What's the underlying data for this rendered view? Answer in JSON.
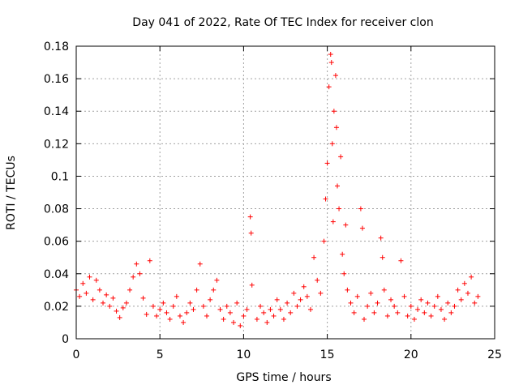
{
  "chart_data": {
    "type": "scatter",
    "title": "Day 041 of 2022, Rate Of TEC Index for receiver clon",
    "xlabel": "GPS time / hours",
    "ylabel": "ROTI / TECUs",
    "xlim": [
      0,
      25
    ],
    "ylim": [
      0,
      0.18
    ],
    "xticks": [
      "0",
      "5",
      "10",
      "15",
      "20",
      "25"
    ],
    "yticks": [
      "0",
      "0.02",
      "0.04",
      "0.06",
      "0.08",
      "0.1",
      "0.12",
      "0.14",
      "0.16",
      "0.18"
    ],
    "grid": true,
    "marker_color": "#ff0000",
    "series": [
      {
        "points": [
          [
            0.0,
            0.03
          ],
          [
            0.2,
            0.026
          ],
          [
            0.4,
            0.034
          ],
          [
            0.6,
            0.028
          ],
          [
            0.8,
            0.038
          ],
          [
            1.0,
            0.024
          ],
          [
            1.2,
            0.036
          ],
          [
            1.4,
            0.03
          ],
          [
            1.6,
            0.022
          ],
          [
            1.8,
            0.027
          ],
          [
            2.0,
            0.02
          ],
          [
            2.2,
            0.025
          ],
          [
            2.4,
            0.017
          ],
          [
            2.6,
            0.013
          ],
          [
            2.8,
            0.019
          ],
          [
            3.0,
            0.022
          ],
          [
            3.2,
            0.03
          ],
          [
            3.4,
            0.038
          ],
          [
            3.6,
            0.046
          ],
          [
            3.8,
            0.04
          ],
          [
            4.0,
            0.025
          ],
          [
            4.2,
            0.015
          ],
          [
            4.4,
            0.048
          ],
          [
            4.6,
            0.02
          ],
          [
            4.8,
            0.014
          ],
          [
            5.0,
            0.018
          ],
          [
            5.2,
            0.022
          ],
          [
            5.4,
            0.016
          ],
          [
            5.6,
            0.012
          ],
          [
            5.8,
            0.02
          ],
          [
            6.0,
            0.026
          ],
          [
            6.2,
            0.014
          ],
          [
            6.4,
            0.01
          ],
          [
            6.6,
            0.016
          ],
          [
            6.8,
            0.022
          ],
          [
            7.0,
            0.018
          ],
          [
            7.2,
            0.03
          ],
          [
            7.4,
            0.046
          ],
          [
            7.6,
            0.02
          ],
          [
            7.8,
            0.014
          ],
          [
            8.0,
            0.024
          ],
          [
            8.2,
            0.03
          ],
          [
            8.4,
            0.036
          ],
          [
            8.6,
            0.018
          ],
          [
            8.8,
            0.012
          ],
          [
            9.0,
            0.02
          ],
          [
            9.2,
            0.016
          ],
          [
            9.4,
            0.01
          ],
          [
            9.6,
            0.022
          ],
          [
            9.8,
            0.008
          ],
          [
            10.0,
            0.014
          ],
          [
            10.2,
            0.018
          ],
          [
            10.4,
            0.075
          ],
          [
            10.45,
            0.065
          ],
          [
            10.5,
            0.033
          ],
          [
            10.8,
            0.012
          ],
          [
            11.0,
            0.02
          ],
          [
            11.2,
            0.016
          ],
          [
            11.4,
            0.01
          ],
          [
            11.6,
            0.018
          ],
          [
            11.8,
            0.014
          ],
          [
            12.0,
            0.024
          ],
          [
            12.2,
            0.018
          ],
          [
            12.4,
            0.012
          ],
          [
            12.6,
            0.022
          ],
          [
            12.8,
            0.016
          ],
          [
            13.0,
            0.028
          ],
          [
            13.2,
            0.02
          ],
          [
            13.4,
            0.024
          ],
          [
            13.6,
            0.032
          ],
          [
            13.8,
            0.026
          ],
          [
            14.0,
            0.018
          ],
          [
            14.2,
            0.05
          ],
          [
            14.4,
            0.036
          ],
          [
            14.6,
            0.028
          ],
          [
            14.8,
            0.06
          ],
          [
            14.9,
            0.086
          ],
          [
            15.0,
            0.108
          ],
          [
            15.1,
            0.155
          ],
          [
            15.2,
            0.175
          ],
          [
            15.25,
            0.17
          ],
          [
            15.3,
            0.12
          ],
          [
            15.35,
            0.072
          ],
          [
            15.4,
            0.14
          ],
          [
            15.5,
            0.162
          ],
          [
            15.55,
            0.13
          ],
          [
            15.6,
            0.094
          ],
          [
            15.7,
            0.08
          ],
          [
            15.8,
            0.112
          ],
          [
            15.9,
            0.052
          ],
          [
            16.0,
            0.04
          ],
          [
            16.1,
            0.07
          ],
          [
            16.2,
            0.03
          ],
          [
            16.4,
            0.022
          ],
          [
            16.6,
            0.016
          ],
          [
            16.8,
            0.026
          ],
          [
            17.0,
            0.08
          ],
          [
            17.1,
            0.068
          ],
          [
            17.2,
            0.012
          ],
          [
            17.4,
            0.02
          ],
          [
            17.6,
            0.028
          ],
          [
            17.8,
            0.016
          ],
          [
            18.0,
            0.022
          ],
          [
            18.2,
            0.062
          ],
          [
            18.3,
            0.05
          ],
          [
            18.4,
            0.03
          ],
          [
            18.6,
            0.014
          ],
          [
            18.8,
            0.024
          ],
          [
            19.0,
            0.02
          ],
          [
            19.2,
            0.016
          ],
          [
            19.4,
            0.048
          ],
          [
            19.6,
            0.026
          ],
          [
            19.8,
            0.014
          ],
          [
            20.0,
            0.02
          ],
          [
            20.2,
            0.012
          ],
          [
            20.4,
            0.018
          ],
          [
            20.6,
            0.024
          ],
          [
            20.8,
            0.016
          ],
          [
            21.0,
            0.022
          ],
          [
            21.2,
            0.014
          ],
          [
            21.4,
            0.02
          ],
          [
            21.6,
            0.026
          ],
          [
            21.8,
            0.018
          ],
          [
            22.0,
            0.012
          ],
          [
            22.2,
            0.022
          ],
          [
            22.4,
            0.016
          ],
          [
            22.6,
            0.02
          ],
          [
            22.8,
            0.03
          ],
          [
            23.0,
            0.024
          ],
          [
            23.2,
            0.034
          ],
          [
            23.4,
            0.028
          ],
          [
            23.6,
            0.038
          ],
          [
            23.8,
            0.022
          ],
          [
            24.0,
            0.026
          ]
        ]
      }
    ]
  }
}
